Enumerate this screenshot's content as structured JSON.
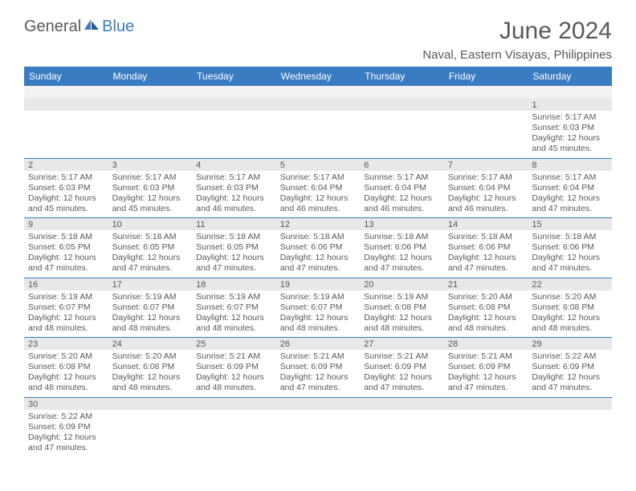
{
  "brand": {
    "general": "General",
    "blue": "Blue"
  },
  "title": "June 2024",
  "location": "Naval, Eastern Visayas, Philippines",
  "day_names": [
    "Sunday",
    "Monday",
    "Tuesday",
    "Wednesday",
    "Thursday",
    "Friday",
    "Saturday"
  ],
  "colors": {
    "header_bg": "#3a7cc2",
    "header_text": "#ffffff",
    "date_bg": "#e8e8e8",
    "text": "#595959",
    "rule": "#3a7cc2"
  },
  "weeks": [
    {
      "dates": [
        "",
        "",
        "",
        "",
        "",
        "",
        "1"
      ],
      "cells": [
        null,
        null,
        null,
        null,
        null,
        null,
        {
          "sr": "Sunrise: 5:17 AM",
          "ss": "Sunset: 6:03 PM",
          "d1": "Daylight: 12 hours",
          "d2": "and 45 minutes."
        }
      ]
    },
    {
      "dates": [
        "2",
        "3",
        "4",
        "5",
        "6",
        "7",
        "8"
      ],
      "cells": [
        {
          "sr": "Sunrise: 5:17 AM",
          "ss": "Sunset: 6:03 PM",
          "d1": "Daylight: 12 hours",
          "d2": "and 45 minutes."
        },
        {
          "sr": "Sunrise: 5:17 AM",
          "ss": "Sunset: 6:03 PM",
          "d1": "Daylight: 12 hours",
          "d2": "and 45 minutes."
        },
        {
          "sr": "Sunrise: 5:17 AM",
          "ss": "Sunset: 6:03 PM",
          "d1": "Daylight: 12 hours",
          "d2": "and 46 minutes."
        },
        {
          "sr": "Sunrise: 5:17 AM",
          "ss": "Sunset: 6:04 PM",
          "d1": "Daylight: 12 hours",
          "d2": "and 46 minutes."
        },
        {
          "sr": "Sunrise: 5:17 AM",
          "ss": "Sunset: 6:04 PM",
          "d1": "Daylight: 12 hours",
          "d2": "and 46 minutes."
        },
        {
          "sr": "Sunrise: 5:17 AM",
          "ss": "Sunset: 6:04 PM",
          "d1": "Daylight: 12 hours",
          "d2": "and 46 minutes."
        },
        {
          "sr": "Sunrise: 5:17 AM",
          "ss": "Sunset: 6:04 PM",
          "d1": "Daylight: 12 hours",
          "d2": "and 47 minutes."
        }
      ]
    },
    {
      "dates": [
        "9",
        "10",
        "11",
        "12",
        "13",
        "14",
        "15"
      ],
      "cells": [
        {
          "sr": "Sunrise: 5:18 AM",
          "ss": "Sunset: 6:05 PM",
          "d1": "Daylight: 12 hours",
          "d2": "and 47 minutes."
        },
        {
          "sr": "Sunrise: 5:18 AM",
          "ss": "Sunset: 6:05 PM",
          "d1": "Daylight: 12 hours",
          "d2": "and 47 minutes."
        },
        {
          "sr": "Sunrise: 5:18 AM",
          "ss": "Sunset: 6:05 PM",
          "d1": "Daylight: 12 hours",
          "d2": "and 47 minutes."
        },
        {
          "sr": "Sunrise: 5:18 AM",
          "ss": "Sunset: 6:06 PM",
          "d1": "Daylight: 12 hours",
          "d2": "and 47 minutes."
        },
        {
          "sr": "Sunrise: 5:18 AM",
          "ss": "Sunset: 6:06 PM",
          "d1": "Daylight: 12 hours",
          "d2": "and 47 minutes."
        },
        {
          "sr": "Sunrise: 5:18 AM",
          "ss": "Sunset: 6:06 PM",
          "d1": "Daylight: 12 hours",
          "d2": "and 47 minutes."
        },
        {
          "sr": "Sunrise: 5:18 AM",
          "ss": "Sunset: 6:06 PM",
          "d1": "Daylight: 12 hours",
          "d2": "and 47 minutes."
        }
      ]
    },
    {
      "dates": [
        "16",
        "17",
        "18",
        "19",
        "20",
        "21",
        "22"
      ],
      "cells": [
        {
          "sr": "Sunrise: 5:19 AM",
          "ss": "Sunset: 6:07 PM",
          "d1": "Daylight: 12 hours",
          "d2": "and 48 minutes."
        },
        {
          "sr": "Sunrise: 5:19 AM",
          "ss": "Sunset: 6:07 PM",
          "d1": "Daylight: 12 hours",
          "d2": "and 48 minutes."
        },
        {
          "sr": "Sunrise: 5:19 AM",
          "ss": "Sunset: 6:07 PM",
          "d1": "Daylight: 12 hours",
          "d2": "and 48 minutes."
        },
        {
          "sr": "Sunrise: 5:19 AM",
          "ss": "Sunset: 6:07 PM",
          "d1": "Daylight: 12 hours",
          "d2": "and 48 minutes."
        },
        {
          "sr": "Sunrise: 5:19 AM",
          "ss": "Sunset: 6:08 PM",
          "d1": "Daylight: 12 hours",
          "d2": "and 48 minutes."
        },
        {
          "sr": "Sunrise: 5:20 AM",
          "ss": "Sunset: 6:08 PM",
          "d1": "Daylight: 12 hours",
          "d2": "and 48 minutes."
        },
        {
          "sr": "Sunrise: 5:20 AM",
          "ss": "Sunset: 6:08 PM",
          "d1": "Daylight: 12 hours",
          "d2": "and 48 minutes."
        }
      ]
    },
    {
      "dates": [
        "23",
        "24",
        "25",
        "26",
        "27",
        "28",
        "29"
      ],
      "cells": [
        {
          "sr": "Sunrise: 5:20 AM",
          "ss": "Sunset: 6:08 PM",
          "d1": "Daylight: 12 hours",
          "d2": "and 48 minutes."
        },
        {
          "sr": "Sunrise: 5:20 AM",
          "ss": "Sunset: 6:08 PM",
          "d1": "Daylight: 12 hours",
          "d2": "and 48 minutes."
        },
        {
          "sr": "Sunrise: 5:21 AM",
          "ss": "Sunset: 6:09 PM",
          "d1": "Daylight: 12 hours",
          "d2": "and 48 minutes."
        },
        {
          "sr": "Sunrise: 5:21 AM",
          "ss": "Sunset: 6:09 PM",
          "d1": "Daylight: 12 hours",
          "d2": "and 47 minutes."
        },
        {
          "sr": "Sunrise: 5:21 AM",
          "ss": "Sunset: 6:09 PM",
          "d1": "Daylight: 12 hours",
          "d2": "and 47 minutes."
        },
        {
          "sr": "Sunrise: 5:21 AM",
          "ss": "Sunset: 6:09 PM",
          "d1": "Daylight: 12 hours",
          "d2": "and 47 minutes."
        },
        {
          "sr": "Sunrise: 5:22 AM",
          "ss": "Sunset: 6:09 PM",
          "d1": "Daylight: 12 hours",
          "d2": "and 47 minutes."
        }
      ]
    },
    {
      "dates": [
        "30",
        "",
        "",
        "",
        "",
        "",
        ""
      ],
      "cells": [
        {
          "sr": "Sunrise: 5:22 AM",
          "ss": "Sunset: 6:09 PM",
          "d1": "Daylight: 12 hours",
          "d2": "and 47 minutes."
        },
        null,
        null,
        null,
        null,
        null,
        null
      ]
    }
  ]
}
